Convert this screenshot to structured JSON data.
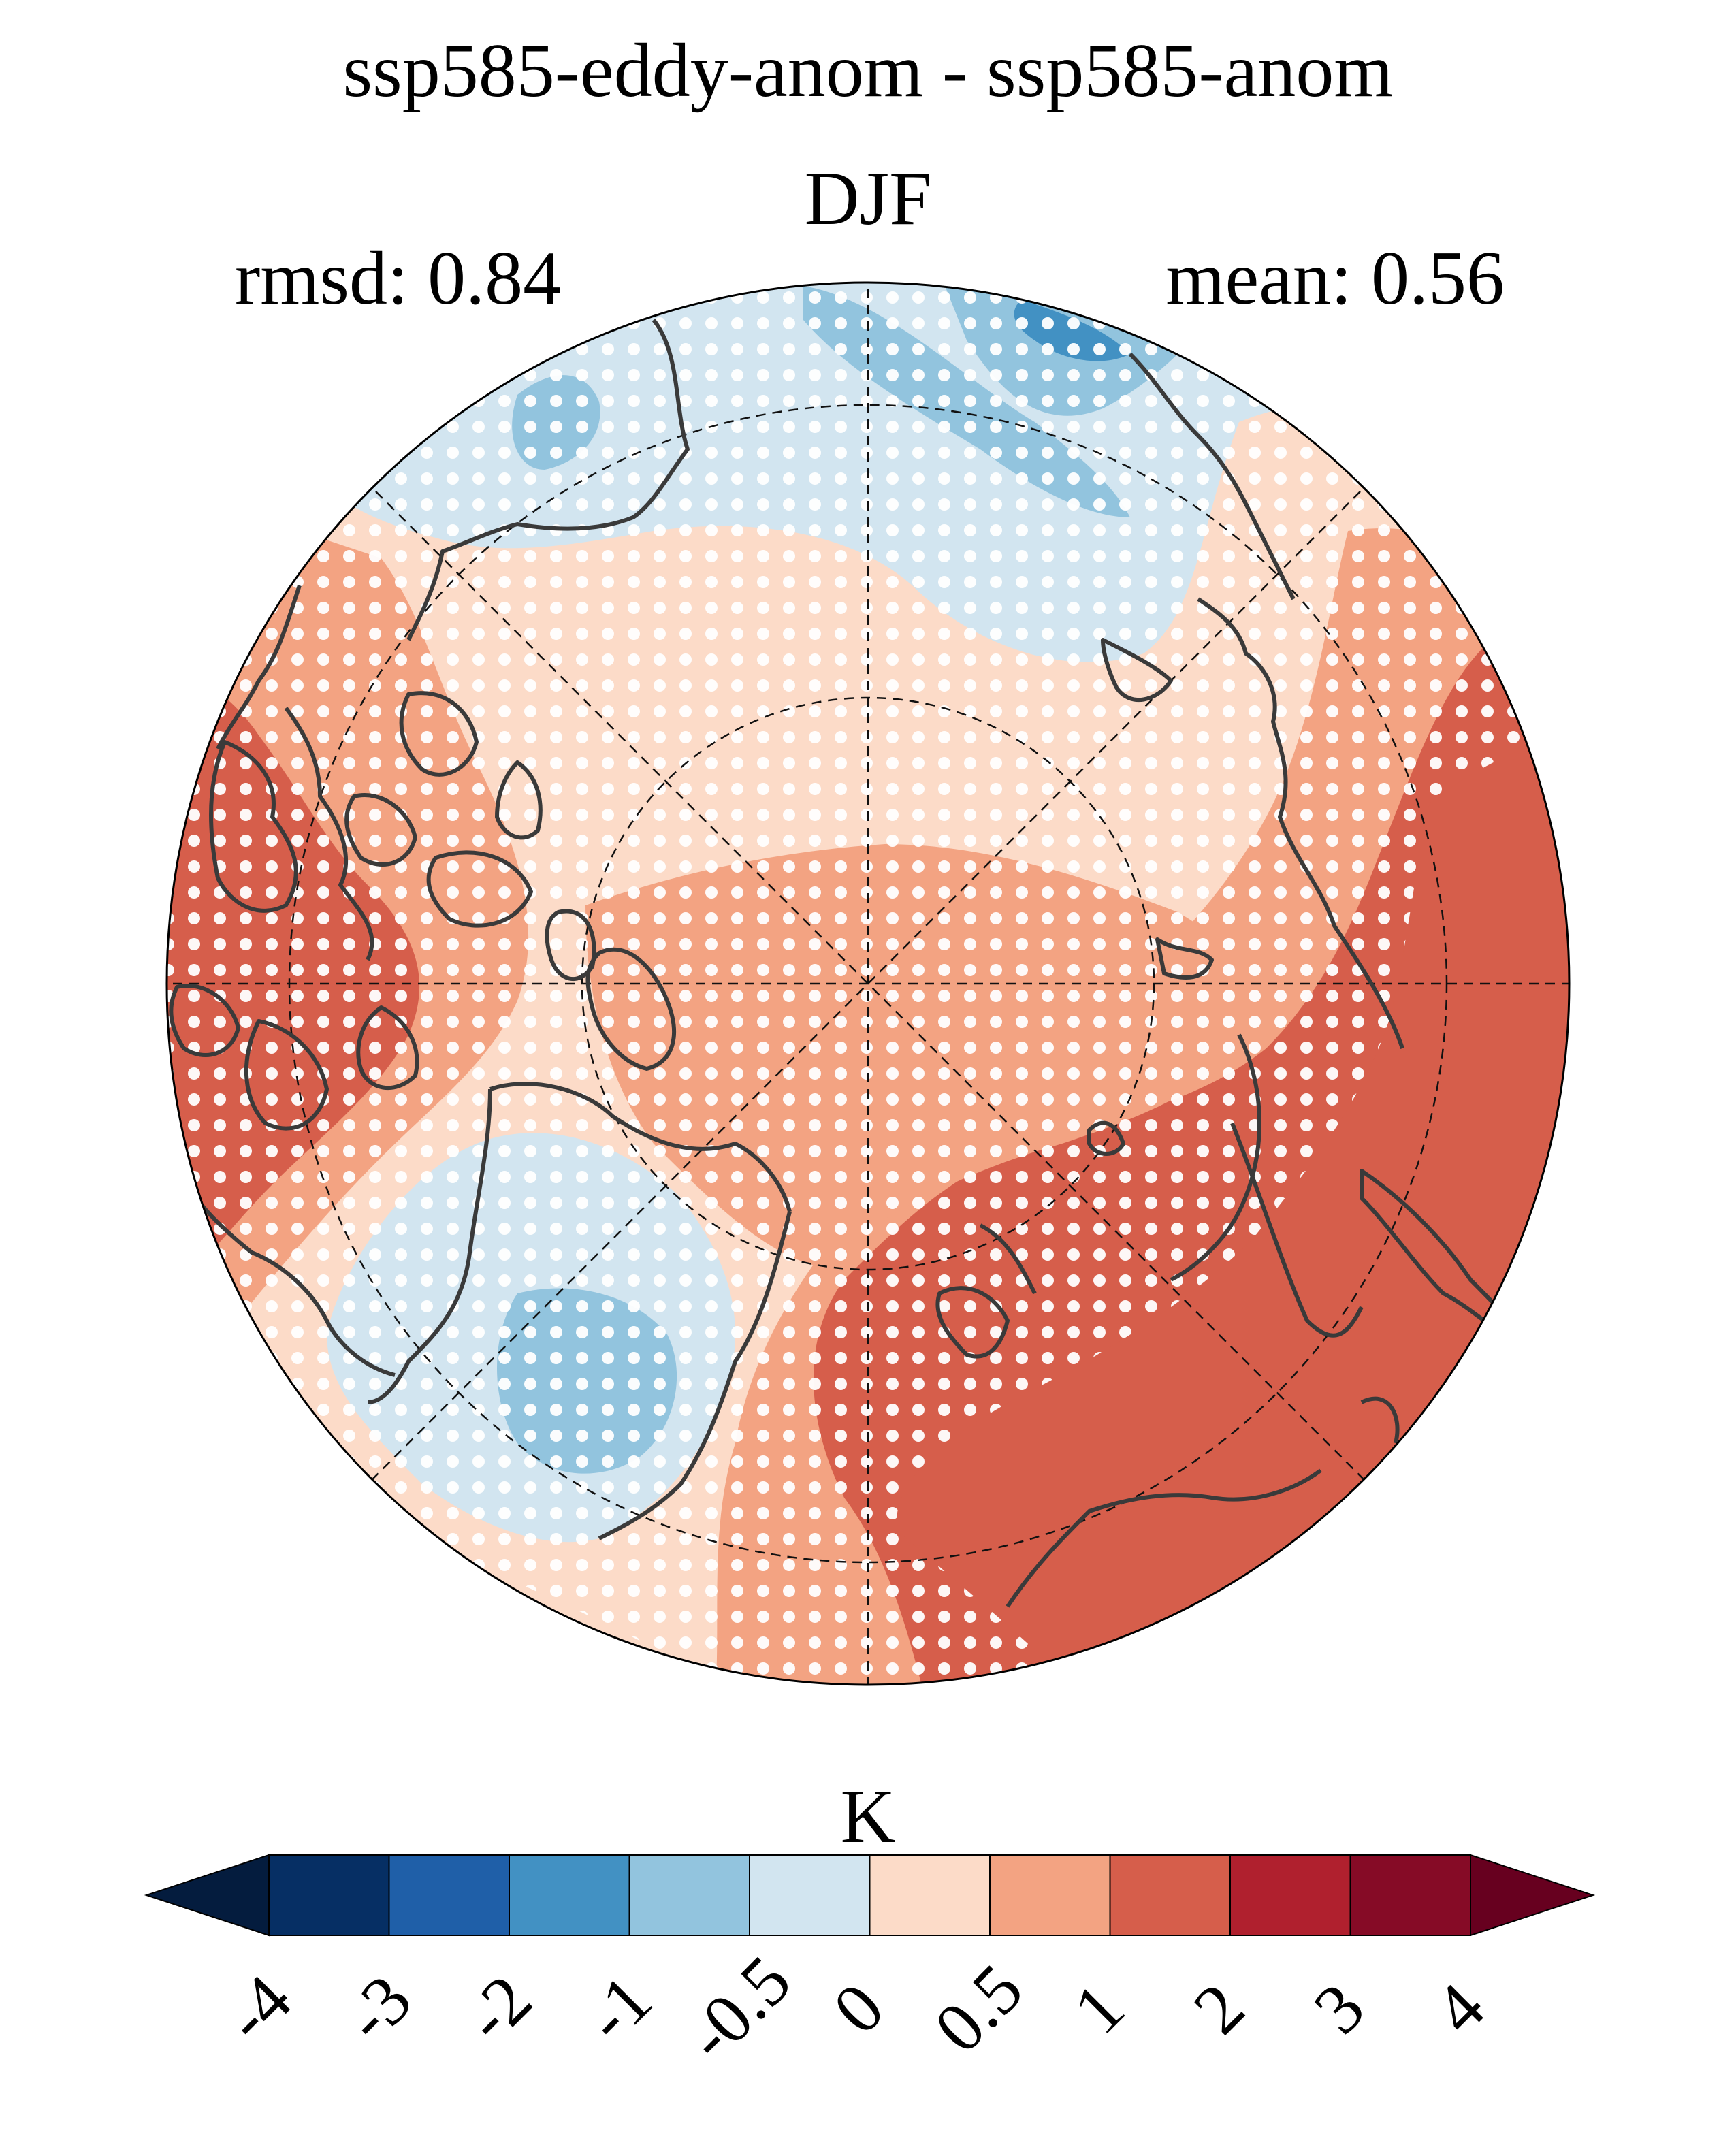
{
  "title": "ssp585-eddy-anom - ssp585-anom",
  "subtitle": "DJF",
  "stats": {
    "left": "rmsd: 0.84",
    "right": "mean: 0.56"
  },
  "colorbar": {
    "units": "K",
    "ticks": [
      "-4",
      "-3",
      "-2",
      "-1",
      "-0.5",
      "0",
      "0.5",
      "1",
      "2",
      "3",
      "4"
    ],
    "colors": [
      "#062f64",
      "#1f5fa8",
      "#4291c3",
      "#92c4de",
      "#d2e5f0",
      "#fcdbc8",
      "#f3a382",
      "#d65e4b",
      "#b0202e",
      "#860b26"
    ],
    "under_color": "#041c3e",
    "over_color": "#67001f",
    "extend": "both"
  },
  "map": {
    "projection": "north polar stereographic",
    "stippling": "white dots"
  }
}
